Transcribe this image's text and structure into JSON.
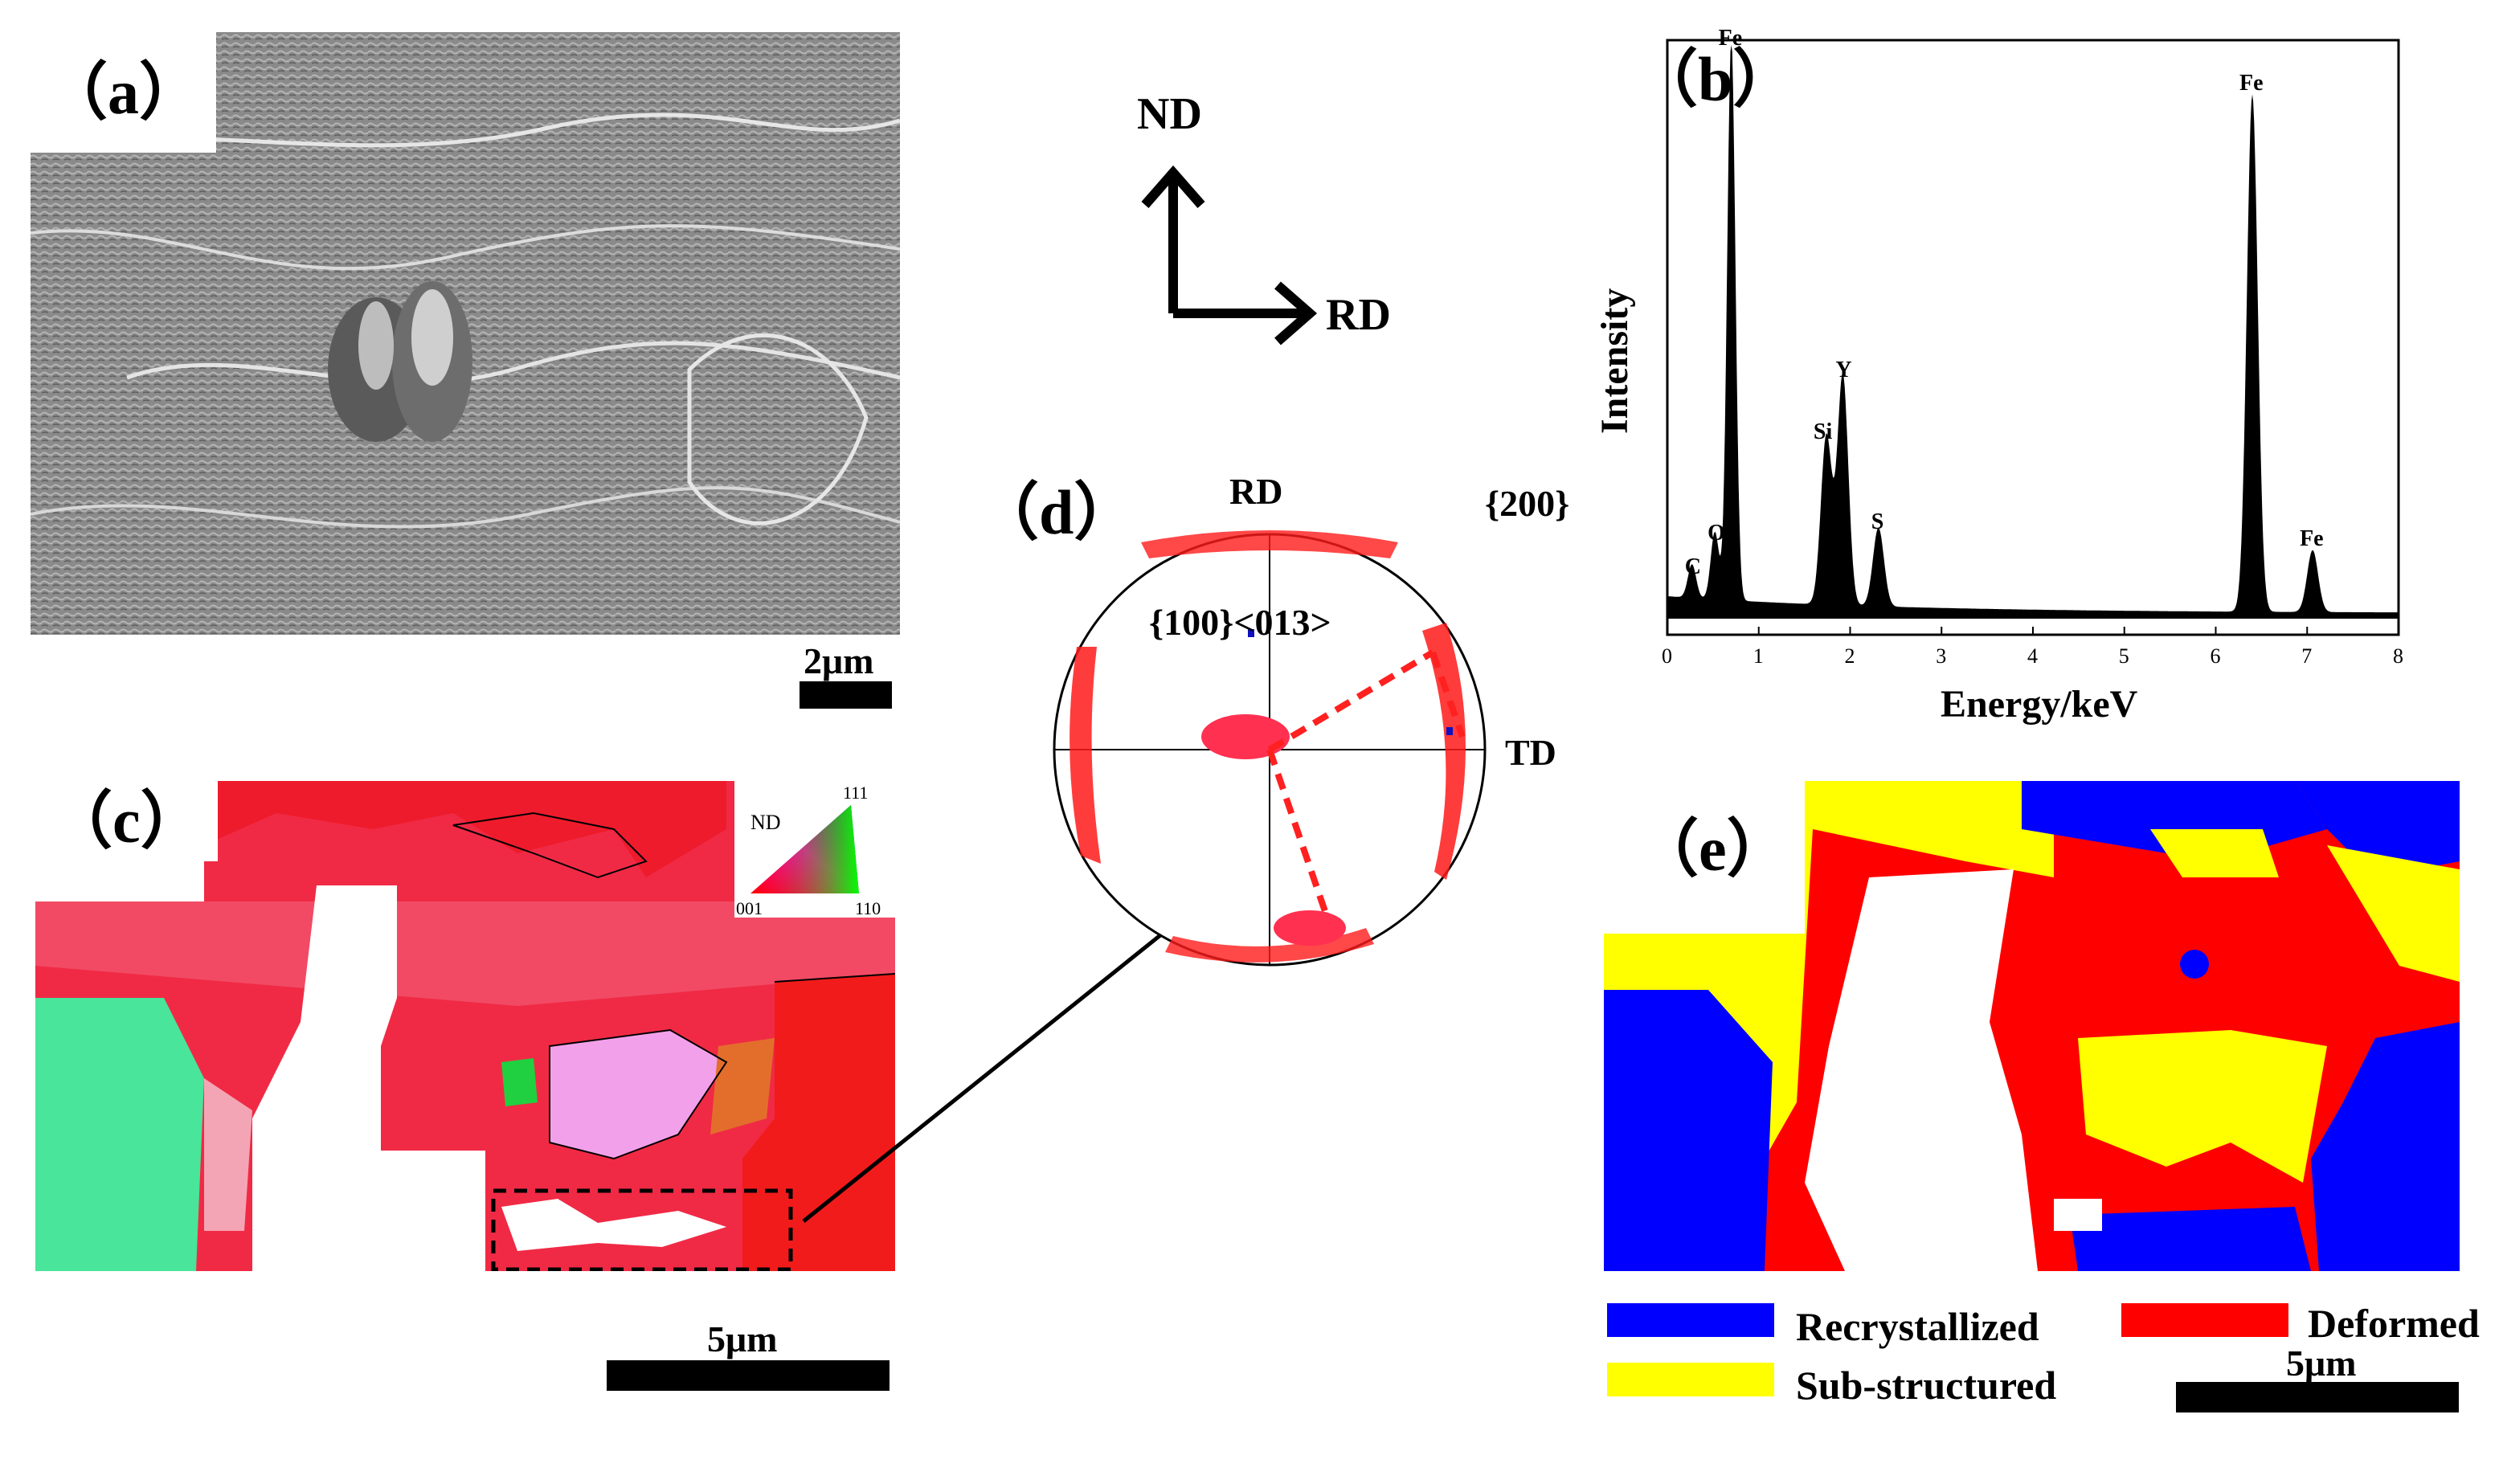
{
  "panels": {
    "a": {
      "tag": "（a）",
      "scale": "2μm"
    },
    "b": {
      "tag": "（b）",
      "chart_data": {
        "type": "line",
        "title": "",
        "xlabel": "Energy/keV",
        "ylabel": "Intensity",
        "xlim": [
          0,
          8
        ],
        "xticks": [
          "0",
          "1",
          "2",
          "3",
          "4",
          "5",
          "6",
          "7",
          "8"
        ],
        "peaks": [
          {
            "label": "C",
            "energy": 0.27,
            "height": 0.06
          },
          {
            "label": "O",
            "energy": 0.52,
            "height": 0.12
          },
          {
            "label": "Fe",
            "energy": 0.7,
            "height": 1.0
          },
          {
            "label": "Si",
            "energy": 1.74,
            "height": 0.3
          },
          {
            "label": "Y",
            "energy": 1.92,
            "height": 0.41
          },
          {
            "label": "S",
            "energy": 2.31,
            "height": 0.14
          },
          {
            "label": "Fe",
            "energy": 6.4,
            "height": 0.92
          },
          {
            "label": "Fe",
            "energy": 7.06,
            "height": 0.11
          }
        ]
      }
    },
    "c": {
      "tag": "（c）",
      "scale": "5μm",
      "ipf_key": {
        "axis": "ND",
        "corner_111": "111",
        "corner_001": "001",
        "corner_110": "110"
      }
    },
    "d": {
      "tag": "（d）",
      "pole": "{200}",
      "rd": "RD",
      "td": "TD",
      "texture": "{100}<013>"
    },
    "e": {
      "tag": "（e）",
      "scale": "5μm",
      "legend": [
        {
          "label": "Recrystallized",
          "color": "#0000ff"
        },
        {
          "label": "Sub-structured",
          "color": "#ffff00"
        },
        {
          "label": "Deformed",
          "color": "#ff0000"
        }
      ]
    }
  },
  "axes_glyph": {
    "nd": "ND",
    "rd": "RD"
  }
}
